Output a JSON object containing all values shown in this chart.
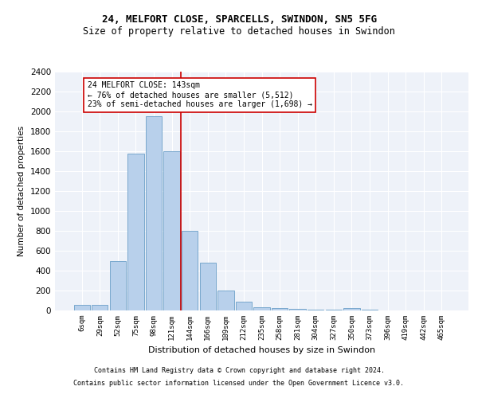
{
  "title1": "24, MELFORT CLOSE, SPARCELLS, SWINDON, SN5 5FG",
  "title2": "Size of property relative to detached houses in Swindon",
  "xlabel": "Distribution of detached houses by size in Swindon",
  "ylabel": "Number of detached properties",
  "bar_labels": [
    "6sqm",
    "29sqm",
    "52sqm",
    "75sqm",
    "98sqm",
    "121sqm",
    "144sqm",
    "166sqm",
    "189sqm",
    "212sqm",
    "235sqm",
    "258sqm",
    "281sqm",
    "304sqm",
    "327sqm",
    "350sqm",
    "373sqm",
    "396sqm",
    "419sqm",
    "442sqm",
    "465sqm"
  ],
  "bar_values": [
    55,
    55,
    500,
    1580,
    1950,
    1600,
    800,
    480,
    200,
    90,
    35,
    25,
    15,
    10,
    5,
    25,
    5,
    3,
    2,
    2,
    2
  ],
  "bar_color": "#b8d0eb",
  "bar_edge_color": "#6a9fc8",
  "vline_position": 5.5,
  "vline_color": "#cc0000",
  "annotation_line1": "24 MELFORT CLOSE: 143sqm",
  "annotation_line2": "← 76% of detached houses are smaller (5,512)",
  "annotation_line3": "23% of semi-detached houses are larger (1,698) →",
  "annotation_box_color": "#cc0000",
  "footnote1": "Contains HM Land Registry data © Crown copyright and database right 2024.",
  "footnote2": "Contains public sector information licensed under the Open Government Licence v3.0.",
  "bg_color": "#eef2f9",
  "grid_color": "#ffffff",
  "ylim_max": 2400,
  "yticks": [
    0,
    200,
    400,
    600,
    800,
    1000,
    1200,
    1400,
    1600,
    1800,
    2000,
    2200,
    2400
  ],
  "title1_fontsize": 9,
  "title2_fontsize": 8.5,
  "xlabel_fontsize": 8,
  "ylabel_fontsize": 7.5,
  "tick_fontsize": 6.5,
  "ytick_fontsize": 7.5,
  "footnote_fontsize": 6,
  "annotation_fontsize": 7
}
